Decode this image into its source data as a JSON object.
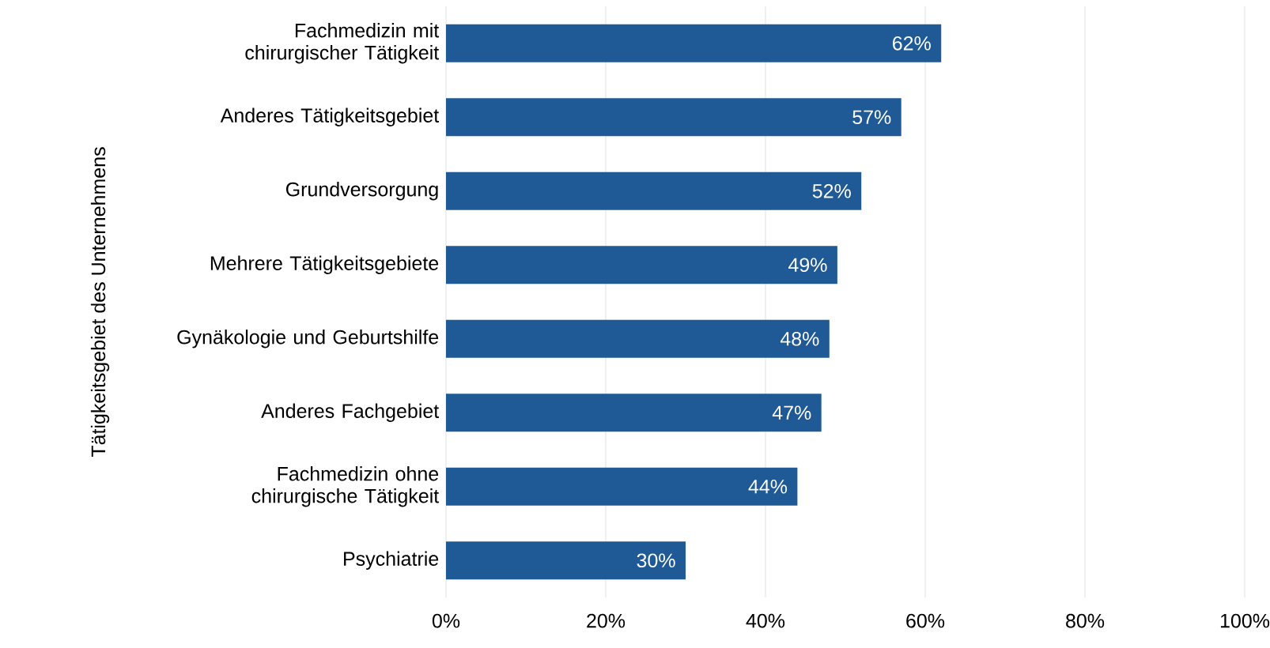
{
  "chart_data": {
    "type": "bar",
    "orientation": "horizontal",
    "ylabel": "Tätigkeitsgebiet des Unternehmens",
    "categories": [
      "Fachmedizin mit chirurgischer Tätigkeit",
      "Anderes Tätigkeitsgebiet",
      "Grundversorgung",
      "Mehrere Tätigkeitsgebiete",
      "Gynäkologie und Geburtshilfe",
      "Anderes Fachgebiet",
      "Fachmedizin ohne chirurgische Tätigkeit",
      "Psychiatrie"
    ],
    "values": [
      62,
      57,
      52,
      49,
      48,
      47,
      44,
      30
    ],
    "value_labels": [
      "62%",
      "57%",
      "52%",
      "49%",
      "48%",
      "47%",
      "44%",
      "30%"
    ],
    "color": "#1f5a96",
    "xlim": [
      0,
      100
    ],
    "xticks": [
      {
        "value": 0,
        "label": "0%"
      },
      {
        "value": 20,
        "label": "20%"
      },
      {
        "value": 40,
        "label": "40%"
      },
      {
        "value": 60,
        "label": "60%"
      },
      {
        "value": 80,
        "label": "80%"
      },
      {
        "value": 100,
        "label": "100%"
      }
    ],
    "grid": "x"
  }
}
